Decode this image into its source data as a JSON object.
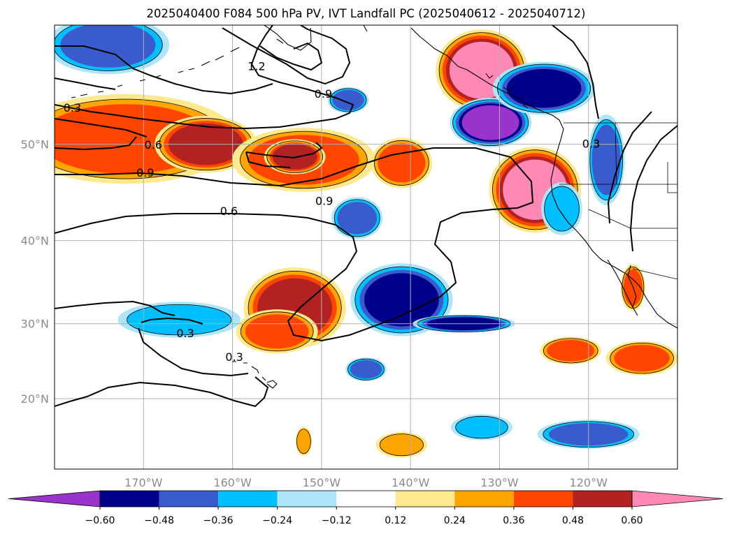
{
  "title": "2025040400 F084 500 hPa PV, IVT Landfall PC (2025040612 - 2025040712)",
  "chart_data": {
    "type": "heatmap",
    "title": "2025040400 F084 500 hPa PV, IVT Landfall PC (2025040612 - 2025040712)",
    "lon_range": [
      -180,
      -110
    ],
    "lat_range": [
      10,
      60
    ],
    "grid": true,
    "lat_ticks": [
      {
        "value": 20,
        "label": "20°N"
      },
      {
        "value": 30,
        "label": "30°N"
      },
      {
        "value": 40,
        "label": "40°N"
      },
      {
        "value": 50,
        "label": "50°N"
      }
    ],
    "lon_ticks": [
      {
        "value": -170,
        "label": "170°W"
      },
      {
        "value": -160,
        "label": "160°W"
      },
      {
        "value": -150,
        "label": "150°W"
      },
      {
        "value": -140,
        "label": "140°W"
      },
      {
        "value": -130,
        "label": "130°W"
      },
      {
        "value": -120,
        "label": "120°W"
      }
    ],
    "colorbar": {
      "boundaries": [
        -0.6,
        -0.48,
        -0.36,
        -0.24,
        -0.12,
        0.12,
        0.24,
        0.36,
        0.48,
        0.6
      ],
      "tick_labels": [
        "−0.60",
        "−0.48",
        "−0.36",
        "−0.24",
        "−0.12",
        "0.12",
        "0.24",
        "0.36",
        "0.48",
        "0.60"
      ],
      "colors": [
        "#9933cc",
        "#00008b",
        "#3a5bcc",
        "#00bfff",
        "#ade5fb",
        "#ffffff",
        "#ffe98e",
        "#ffa500",
        "#ff4500",
        "#b22222",
        "#ff88b5"
      ],
      "extend": "both"
    },
    "contour_levels": [
      0.3,
      0.6,
      0.9,
      1.2
    ],
    "contour_labels": [
      {
        "text": "0.3",
        "lon": -178.0,
        "lat": 53.3
      },
      {
        "text": "0.6",
        "lon": -168.9,
        "lat": 49.9
      },
      {
        "text": "0.9",
        "lon": -169.8,
        "lat": 47.2
      },
      {
        "text": "1.2",
        "lon": -157.3,
        "lat": 56.8
      },
      {
        "text": "0.9",
        "lon": -149.8,
        "lat": 54.5
      },
      {
        "text": "0.9",
        "lon": -149.7,
        "lat": 44.3
      },
      {
        "text": "0.6",
        "lon": -160.4,
        "lat": 43.2
      },
      {
        "text": "0.3",
        "lon": -119.7,
        "lat": 50.0
      },
      {
        "text": "0.3",
        "lon": -165.3,
        "lat": 28.7
      },
      {
        "text": "0.3",
        "lon": -159.8,
        "lat": 25.6
      }
    ],
    "anomalies": [
      {
        "lon": -172,
        "lat": 50.5,
        "value": 0.36,
        "rlon": 11,
        "rlat": 3.8
      },
      {
        "lon": -163,
        "lat": 50.0,
        "value": 0.48,
        "rlon": 5,
        "rlat": 2.4
      },
      {
        "lon": -152,
        "lat": 48.5,
        "value": 0.36,
        "rlon": 7,
        "rlat": 2.8
      },
      {
        "lon": -153,
        "lat": 48.8,
        "value": 0.48,
        "rlon": 3,
        "rlat": 1.5
      },
      {
        "lon": -141,
        "lat": 48.2,
        "value": 0.36,
        "rlon": 3,
        "rlat": 2.2
      },
      {
        "lon": -126,
        "lat": 45.5,
        "value": 0.6,
        "rlon": 4.5,
        "rlat": 4.0
      },
      {
        "lon": -132,
        "lat": 56.5,
        "value": 0.6,
        "rlon": 4.5,
        "rlat": 3.0
      },
      {
        "lon": -153,
        "lat": 32.0,
        "value": 0.48,
        "rlon": 5,
        "rlat": 4.5
      },
      {
        "lon": -155,
        "lat": 29.0,
        "value": 0.36,
        "rlon": 4,
        "rlat": 2.5
      },
      {
        "lon": -115,
        "lat": 34.5,
        "value": 0.36,
        "rlon": 1.2,
        "rlat": 2.5
      },
      {
        "lon": -122,
        "lat": 26.5,
        "value": 0.36,
        "rlon": 3,
        "rlat": 1.6
      },
      {
        "lon": -114,
        "lat": 25.5,
        "value": 0.36,
        "rlon": 3.5,
        "rlat": 2.0
      },
      {
        "lon": -141,
        "lat": 13.5,
        "value": 0.24,
        "rlon": 2.5,
        "rlat": 1.6
      },
      {
        "lon": -152,
        "lat": 14.0,
        "value": 0.24,
        "rlon": 0.8,
        "rlat": 1.8
      },
      {
        "lon": -141,
        "lat": 33.0,
        "value": -0.48,
        "rlon": 5,
        "rlat": 4.0
      },
      {
        "lon": -134,
        "lat": 30.0,
        "value": -0.48,
        "rlon": 5,
        "rlat": 1.0
      },
      {
        "lon": -131,
        "lat": 52.0,
        "value": -0.6,
        "rlon": 4,
        "rlat": 2.0
      },
      {
        "lon": -125,
        "lat": 55.0,
        "value": -0.48,
        "rlon": 5,
        "rlat": 2.0
      },
      {
        "lon": -146,
        "lat": 42.5,
        "value": -0.36,
        "rlon": 2.5,
        "rlat": 2.0
      },
      {
        "lon": -166,
        "lat": 30.5,
        "value": -0.24,
        "rlon": 6,
        "rlat": 2.0
      },
      {
        "lon": -147,
        "lat": 54.0,
        "value": -0.36,
        "rlon": 2,
        "rlat": 1.0
      },
      {
        "lon": -174,
        "lat": 58.5,
        "value": -0.36,
        "rlon": 6,
        "rlat": 2.0
      },
      {
        "lon": -118,
        "lat": 48.5,
        "value": -0.36,
        "rlon": 1.8,
        "rlat": 4.0
      },
      {
        "lon": -123,
        "lat": 43.5,
        "value": -0.24,
        "rlon": 2,
        "rlat": 2.5
      },
      {
        "lon": -145,
        "lat": 24.0,
        "value": -0.36,
        "rlon": 2,
        "rlat": 1.4
      },
      {
        "lon": -132,
        "lat": 16.0,
        "value": -0.24,
        "rlon": 3,
        "rlat": 1.6
      },
      {
        "lon": -120,
        "lat": 15.0,
        "value": -0.36,
        "rlon": 5,
        "rlat": 1.8
      }
    ]
  }
}
